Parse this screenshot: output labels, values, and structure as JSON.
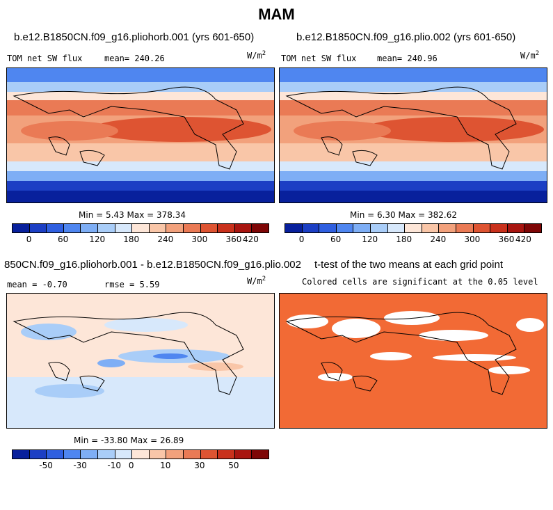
{
  "main_title": "MAM",
  "panels": [
    {
      "title": "b.e12.B1850CN.f09_g16.pliohorb.001 (yrs 601-650)",
      "left_label": "TOM net SW flux",
      "mean_label": "mean= 240.26",
      "units": "W/m",
      "units_exp": "2",
      "minmax": "Min =   5.43 Max = 378.34"
    },
    {
      "title": "b.e12.B1850CN.f09_g16.plio.002 (yrs 601-650)",
      "left_label": "TOM net SW flux",
      "mean_label": "mean= 240.96",
      "units": "W/m",
      "units_exp": "2",
      "minmax": "Min =   6.30 Max = 382.62"
    },
    {
      "title": "850CN.f09_g16.pliohorb.001 - b.e12.B1850CN.f09_g16.plio.002",
      "left_label": "mean =  -0.70",
      "mean_label": "rmse =   5.59",
      "units": "W/m",
      "units_exp": "2",
      "minmax": "Min = -33.80 Max =  26.89"
    },
    {
      "title": "t-test of the two means at each grid point",
      "subtitle": "Colored cells are significant at the 0.05 level"
    }
  ],
  "colorbar_abs": {
    "colors": [
      "#08209c",
      "#1c3fc4",
      "#2f5fe0",
      "#4f86f0",
      "#7eaef5",
      "#a9cdf8",
      "#d7e8fb",
      "#fde6d8",
      "#f9c6a8",
      "#f2a17c",
      "#ea7a55",
      "#de5432",
      "#c9311c",
      "#a81510",
      "#7e0606"
    ],
    "tick_labels": [
      "0",
      "60",
      "120",
      "180",
      "240",
      "300",
      "360",
      "420"
    ]
  },
  "colorbar_diff": {
    "colors": [
      "#08209c",
      "#1c3fc4",
      "#2f5fe0",
      "#4f86f0",
      "#7eaef5",
      "#a9cdf8",
      "#d7e8fb",
      "#fde6d8",
      "#f9c6a8",
      "#f2a17c",
      "#ea7a55",
      "#de5432",
      "#c9311c",
      "#a81510",
      "#7e0606"
    ],
    "tick_labels": [
      "-50",
      "-30",
      "-10",
      "0",
      "10",
      "30",
      "50"
    ]
  },
  "ttest_color": "#f26a35"
}
